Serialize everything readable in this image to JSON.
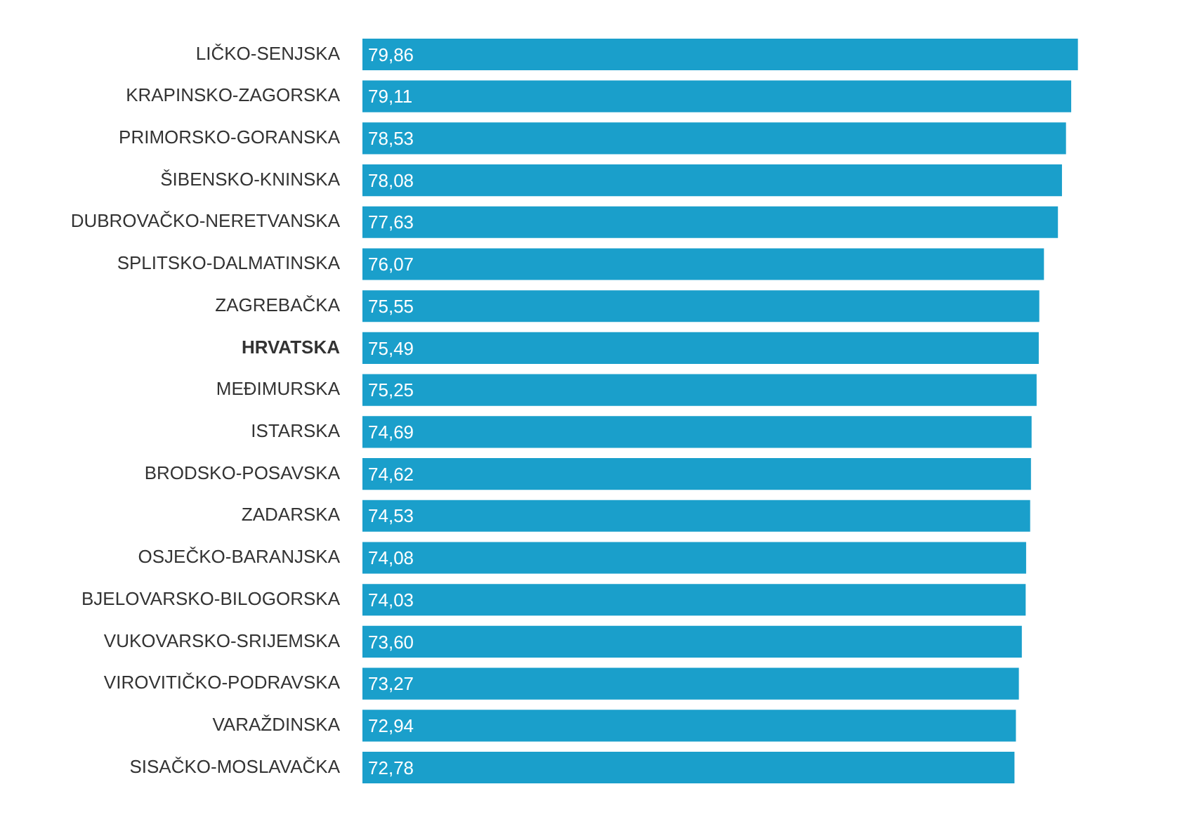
{
  "chart_data": {
    "type": "bar",
    "orientation": "horizontal",
    "categories": [
      "LIČKO-SENJSKA",
      "KRAPINSKO-ZAGORSKA",
      "PRIMORSKO-GORANSKA",
      "ŠIBENSKO-KNINSKA",
      "DUBROVAČKO-NERETVANSKA",
      "SPLITSKO-DALMATINSKA",
      "ZAGREBAČKA",
      "HRVATSKA",
      "MEĐIMURSKA",
      "ISTARSKA",
      "BRODSKO-POSAVSKA",
      "ZADARSKA",
      "OSJEČKO-BARANJSKA",
      "BJELOVARSKO-BILOGORSKA",
      "VUKOVARSKO-SRIJEMSKA",
      "VIROVITIČKO-PODRAVSKA",
      "VARAŽDINSKA",
      "SISAČKO-MOSLAVAČKA"
    ],
    "values": [
      79.86,
      79.11,
      78.53,
      78.08,
      77.63,
      76.07,
      75.55,
      75.49,
      75.25,
      74.69,
      74.62,
      74.53,
      74.08,
      74.03,
      73.6,
      73.27,
      72.94,
      72.78
    ],
    "value_labels": [
      "79,86",
      "79,11",
      "78,53",
      "78,08",
      "77,63",
      "76,07",
      "75,55",
      "75,49",
      "75,25",
      "74,69",
      "74,62",
      "74,53",
      "74,08",
      "74,03",
      "73,60",
      "73,27",
      "72,94",
      "72,78"
    ],
    "color": "#1a9fcb",
    "tick_labels": "y"
  }
}
